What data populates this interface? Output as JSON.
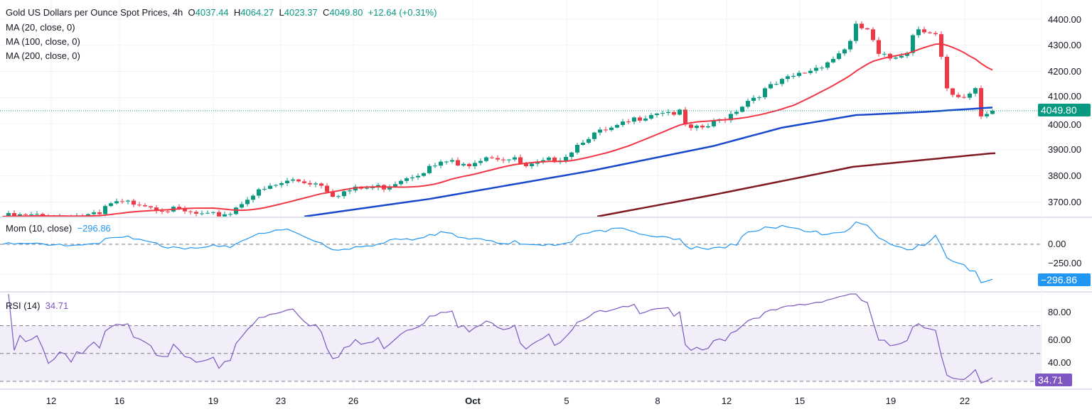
{
  "header": {
    "title": "Gold US Dollars per Ounce Spot Prices, 4h",
    "open_label": "O",
    "open": "4037.44",
    "high_label": "H",
    "high": "4064.27",
    "low_label": "L",
    "low": "4023.37",
    "close_label": "C",
    "close": "4049.80",
    "change": "+12.64 (+0.31%)"
  },
  "indicators": {
    "ma20": "MA (20, close, 0)",
    "ma100": "MA (100, close, 0)",
    "ma200": "MA (200, close, 0)",
    "mom_label": "Mom (10, close)",
    "mom_value": "−296.86",
    "rsi_label": "RSI (14)",
    "rsi_value": "34.71"
  },
  "price_axis": [
    "4400.00",
    "4300.00",
    "4200.00",
    "4100.00",
    "4000.00",
    "3900.00",
    "3800.00",
    "3700.00"
  ],
  "current_price_tag": "4049.80",
  "mom_axis": [
    "0.00",
    "−250.00"
  ],
  "mom_tag": "−296.86",
  "rsi_axis": [
    "80.00",
    "60.00",
    "40.00"
  ],
  "rsi_tag": "34.71",
  "time_axis": [
    "12",
    "16",
    "19",
    "23",
    "26",
    "Oct",
    "5",
    "8",
    "12",
    "15",
    "19",
    "22"
  ],
  "colors": {
    "up": "#089981",
    "down": "#f23645",
    "ma20": "#f23645",
    "ma100": "#1848cc",
    "ma200": "#801922",
    "mom": "#2196f3",
    "rsi": "#7e57c2"
  },
  "chart_data": {
    "type": "candlestick",
    "timeframe": "4h",
    "y_range": [
      3650,
      4420
    ],
    "close_path": [
      [
        0,
        3645
      ],
      [
        17,
        3648
      ],
      [
        18.5,
        3690
      ],
      [
        24,
        3700
      ],
      [
        27,
        3680
      ],
      [
        36,
        3645
      ],
      [
        40,
        3660
      ],
      [
        43,
        3720
      ],
      [
        47.5,
        3760
      ],
      [
        51,
        3785
      ],
      [
        56,
        3770
      ],
      [
        58,
        3730
      ],
      [
        62.5,
        3750
      ],
      [
        67.5,
        3760
      ],
      [
        70,
        3790
      ],
      [
        75,
        3830
      ],
      [
        79,
        3860
      ],
      [
        80,
        3830
      ],
      [
        85,
        3880
      ],
      [
        90,
        3860
      ],
      [
        92,
        3830
      ],
      [
        95,
        3850
      ],
      [
        99,
        3880
      ],
      [
        102.5,
        3950
      ],
      [
        107.5,
        3980
      ],
      [
        112.5,
        4030
      ],
      [
        115.5,
        4050
      ],
      [
        119,
        4040
      ],
      [
        120.5,
        3970
      ],
      [
        124,
        3990
      ],
      [
        127.5,
        4030
      ],
      [
        131,
        4090
      ],
      [
        135,
        4140
      ],
      [
        139,
        4180
      ],
      [
        142.5,
        4210
      ],
      [
        146,
        4250
      ],
      [
        149,
        4310
      ],
      [
        150,
        4370
      ],
      [
        152,
        4360
      ],
      [
        154,
        4260
      ],
      [
        156,
        4250
      ],
      [
        159,
        4280
      ],
      [
        160.5,
        4370
      ],
      [
        162.5,
        4360
      ],
      [
        164,
        4340
      ],
      [
        165,
        4250
      ],
      [
        165.8,
        4130
      ],
      [
        167,
        4100
      ],
      [
        169,
        4090
      ],
      [
        170,
        4115
      ],
      [
        171,
        4140
      ],
      [
        172,
        4030
      ],
      [
        173,
        4040
      ],
      [
        174,
        4049.8
      ]
    ],
    "ma100_path": [
      [
        53,
        3645
      ],
      [
        75,
        3712
      ],
      [
        103.5,
        3820
      ],
      [
        125,
        3915
      ],
      [
        137,
        3985
      ],
      [
        150,
        4033
      ],
      [
        162,
        4045
      ],
      [
        174,
        4062
      ]
    ],
    "ma200_path": [
      [
        104.5,
        3645
      ],
      [
        124.5,
        3726
      ],
      [
        149.5,
        3835
      ],
      [
        174,
        3887
      ]
    ],
    "rsi_levels": [
      70,
      50,
      30
    ]
  }
}
